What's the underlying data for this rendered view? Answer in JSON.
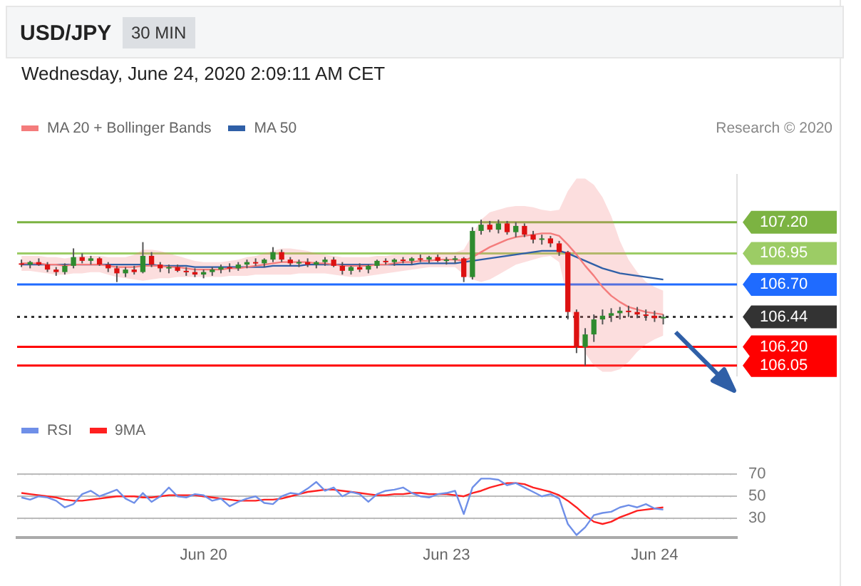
{
  "chart_data": [
    {
      "type": "candlestick",
      "title": "USD/JPY",
      "subtitle": "30 MIN",
      "annotations": [
        "Wednesday, June 24, 2020 2:09:11 AM CET",
        "Research © 2020"
      ],
      "categories": [
        null,
        null,
        null,
        null,
        null,
        null,
        null,
        null,
        null,
        null,
        null,
        null,
        null,
        null,
        null,
        null,
        null,
        null,
        null,
        null,
        null,
        null,
        null,
        null,
        null,
        null,
        null,
        null,
        null,
        null,
        null,
        null,
        null,
        null,
        null,
        null,
        null,
        null,
        null,
        null,
        null,
        null,
        null,
        null,
        null,
        null,
        null,
        null,
        null,
        null,
        null,
        null,
        null,
        null,
        null,
        null,
        null,
        null,
        null,
        null,
        null,
        null,
        null,
        null,
        null,
        null,
        null,
        null,
        null,
        null,
        null,
        null,
        null,
        null,
        null,
        null,
        null,
        null,
        null,
        null,
        null,
        null,
        null
      ],
      "ohlc": [
        [
          106.87,
          106.9,
          106.84,
          106.86
        ],
        [
          106.86,
          106.89,
          106.83,
          106.88
        ],
        [
          106.88,
          106.91,
          106.85,
          106.86
        ],
        [
          106.86,
          106.88,
          106.8,
          106.82
        ],
        [
          106.82,
          106.84,
          106.77,
          106.8
        ],
        [
          106.8,
          106.87,
          106.78,
          106.85
        ],
        [
          106.85,
          106.99,
          106.83,
          106.92
        ],
        [
          106.92,
          106.95,
          106.87,
          106.89
        ],
        [
          106.89,
          106.93,
          106.86,
          106.91
        ],
        [
          106.91,
          106.92,
          106.85,
          106.86
        ],
        [
          106.86,
          106.88,
          106.8,
          106.83
        ],
        [
          106.83,
          106.85,
          106.72,
          106.79
        ],
        [
          106.79,
          106.84,
          106.76,
          106.82
        ],
        [
          106.82,
          106.85,
          106.78,
          106.8
        ],
        [
          106.8,
          107.04,
          106.79,
          106.93
        ],
        [
          106.93,
          106.96,
          106.84,
          106.86
        ],
        [
          106.86,
          106.88,
          106.8,
          106.83
        ],
        [
          106.83,
          106.86,
          106.79,
          106.84
        ],
        [
          106.84,
          106.86,
          106.8,
          106.81
        ],
        [
          106.81,
          106.84,
          106.77,
          106.8
        ],
        [
          106.8,
          106.83,
          106.76,
          106.78
        ],
        [
          106.78,
          106.82,
          106.75,
          106.8
        ],
        [
          106.8,
          106.84,
          106.77,
          106.82
        ],
        [
          106.82,
          106.86,
          106.79,
          106.84
        ],
        [
          106.84,
          106.87,
          106.8,
          106.83
        ],
        [
          106.83,
          106.88,
          106.81,
          106.86
        ],
        [
          106.86,
          106.9,
          106.83,
          106.88
        ],
        [
          106.88,
          106.91,
          106.85,
          106.87
        ],
        [
          106.87,
          106.91,
          106.84,
          106.9
        ],
        [
          106.9,
          107.0,
          106.88,
          106.96
        ],
        [
          106.96,
          106.98,
          106.88,
          106.9
        ],
        [
          106.9,
          106.92,
          106.85,
          106.87
        ],
        [
          106.87,
          106.9,
          106.84,
          106.88
        ],
        [
          106.88,
          106.91,
          106.84,
          106.86
        ],
        [
          106.86,
          106.89,
          106.83,
          106.88
        ],
        [
          106.88,
          106.92,
          106.85,
          106.9
        ],
        [
          106.9,
          106.92,
          106.84,
          106.85
        ],
        [
          106.85,
          106.88,
          106.78,
          106.81
        ],
        [
          106.81,
          106.85,
          106.78,
          106.84
        ],
        [
          106.84,
          106.87,
          106.8,
          106.82
        ],
        [
          106.82,
          106.86,
          106.79,
          106.85
        ],
        [
          106.85,
          106.9,
          106.83,
          106.89
        ],
        [
          106.89,
          106.91,
          106.86,
          106.88
        ],
        [
          106.88,
          106.91,
          106.85,
          106.9
        ],
        [
          106.9,
          106.92,
          106.87,
          106.89
        ],
        [
          106.89,
          106.92,
          106.86,
          106.91
        ],
        [
          106.91,
          106.94,
          106.88,
          106.9
        ],
        [
          106.9,
          106.93,
          106.87,
          106.92
        ],
        [
          106.92,
          106.94,
          106.88,
          106.89
        ],
        [
          106.89,
          106.92,
          106.86,
          106.9
        ],
        [
          106.9,
          106.93,
          106.87,
          106.91
        ],
        [
          106.91,
          106.92,
          106.72,
          106.76
        ],
        [
          106.76,
          107.16,
          106.74,
          107.13
        ],
        [
          107.13,
          107.22,
          107.1,
          107.18
        ],
        [
          107.18,
          107.21,
          107.12,
          107.14
        ],
        [
          107.14,
          107.22,
          107.11,
          107.19
        ],
        [
          107.19,
          107.21,
          107.1,
          107.12
        ],
        [
          107.12,
          107.2,
          107.08,
          107.17
        ],
        [
          107.17,
          107.19,
          107.08,
          107.1
        ],
        [
          107.1,
          107.13,
          107.03,
          107.06
        ],
        [
          107.06,
          107.1,
          107.02,
          107.07
        ],
        [
          107.07,
          107.09,
          107.0,
          107.03
        ],
        [
          107.03,
          107.05,
          106.93,
          106.96
        ],
        [
          106.96,
          106.97,
          106.42,
          106.48
        ],
        [
          106.48,
          106.5,
          106.15,
          106.2
        ],
        [
          106.2,
          106.35,
          106.05,
          106.3
        ],
        [
          106.3,
          106.46,
          106.24,
          106.42
        ],
        [
          106.42,
          106.5,
          106.38,
          106.45
        ],
        [
          106.45,
          106.51,
          106.4,
          106.47
        ],
        [
          106.47,
          106.52,
          106.42,
          106.49
        ],
        [
          106.49,
          106.53,
          106.44,
          106.48
        ],
        [
          106.48,
          106.52,
          106.43,
          106.46
        ],
        [
          106.46,
          106.5,
          106.41,
          106.45
        ],
        [
          106.45,
          106.49,
          106.4,
          106.43
        ],
        [
          106.43,
          106.46,
          106.38,
          106.44
        ],
        null,
        null,
        null,
        null,
        null,
        null,
        null,
        null
      ],
      "series": [
        {
          "name": "MA 20 + Bollinger Bands",
          "type": "line",
          "color": "#f47c7c",
          "values": [
            106.87,
            106.87,
            106.87,
            106.86,
            106.86,
            106.85,
            106.86,
            106.86,
            106.86,
            106.86,
            106.85,
            106.84,
            106.84,
            106.84,
            106.85,
            106.85,
            106.85,
            106.84,
            106.84,
            106.83,
            106.82,
            106.82,
            106.82,
            106.82,
            106.83,
            106.83,
            106.84,
            106.85,
            106.86,
            106.87,
            106.88,
            106.88,
            106.88,
            106.88,
            106.87,
            106.87,
            106.86,
            106.85,
            106.85,
            106.85,
            106.85,
            106.86,
            106.86,
            106.87,
            106.88,
            106.88,
            106.89,
            106.89,
            106.9,
            106.9,
            106.9,
            106.89,
            106.92,
            106.96,
            107.0,
            107.03,
            107.06,
            107.08,
            107.09,
            107.1,
            107.11,
            107.11,
            107.09,
            107.02,
            106.94,
            106.85,
            106.77,
            106.68,
            106.61,
            106.56,
            106.52,
            106.5,
            106.48,
            106.47,
            106.46,
            null,
            null,
            null,
            null,
            null,
            null,
            null,
            null
          ],
          "upper": [
            106.93,
            106.93,
            106.93,
            106.92,
            106.92,
            106.91,
            106.92,
            106.93,
            106.93,
            106.93,
            106.92,
            106.92,
            106.92,
            106.94,
            106.98,
            106.98,
            106.97,
            106.95,
            106.93,
            106.91,
            106.89,
            106.88,
            106.88,
            106.88,
            106.89,
            106.9,
            106.92,
            106.93,
            106.95,
            106.97,
            106.99,
            106.99,
            106.98,
            106.97,
            106.95,
            106.94,
            106.93,
            106.92,
            106.92,
            106.92,
            106.92,
            106.93,
            106.93,
            106.94,
            106.94,
            106.95,
            106.95,
            106.95,
            106.96,
            106.96,
            106.96,
            106.98,
            107.1,
            107.22,
            107.28,
            107.3,
            107.32,
            107.33,
            107.33,
            107.32,
            107.3,
            107.29,
            107.3,
            107.45,
            107.55,
            107.55,
            107.5,
            107.4,
            107.25,
            107.05,
            106.9,
            106.8,
            106.72,
            106.68,
            106.65,
            null,
            null,
            null,
            null,
            null,
            null,
            null,
            null
          ],
          "lower": [
            106.81,
            106.81,
            106.8,
            106.79,
            106.78,
            106.78,
            106.79,
            106.79,
            106.8,
            106.8,
            106.78,
            106.76,
            106.75,
            106.74,
            106.73,
            106.74,
            106.75,
            106.75,
            106.76,
            106.76,
            106.76,
            106.76,
            106.76,
            106.76,
            106.77,
            106.77,
            106.77,
            106.78,
            106.78,
            106.78,
            106.78,
            106.78,
            106.79,
            106.79,
            106.79,
            106.79,
            106.78,
            106.77,
            106.76,
            106.76,
            106.77,
            106.78,
            106.79,
            106.8,
            106.81,
            106.82,
            106.83,
            106.84,
            106.84,
            106.84,
            106.84,
            106.78,
            106.74,
            106.72,
            106.74,
            106.78,
            106.82,
            106.86,
            106.88,
            106.9,
            106.92,
            106.93,
            106.88,
            106.58,
            106.33,
            106.15,
            106.05,
            106.0,
            106.0,
            106.02,
            106.08,
            106.16,
            106.22,
            106.26,
            106.29,
            null,
            null,
            null,
            null,
            null,
            null,
            null,
            null
          ]
        },
        {
          "name": "MA 50",
          "type": "line",
          "color": "#2f5fa7",
          "values": [
            106.86,
            106.86,
            106.86,
            106.86,
            106.86,
            106.86,
            106.86,
            106.86,
            106.86,
            106.86,
            106.86,
            106.86,
            106.86,
            106.86,
            106.86,
            106.86,
            106.85,
            106.85,
            106.85,
            106.85,
            106.84,
            106.84,
            106.84,
            106.84,
            106.84,
            106.84,
            106.84,
            106.84,
            106.84,
            106.85,
            106.85,
            106.85,
            106.85,
            106.86,
            106.86,
            106.86,
            106.86,
            106.86,
            106.86,
            106.86,
            106.86,
            106.86,
            106.86,
            106.86,
            106.86,
            106.86,
            106.87,
            106.87,
            106.87,
            106.87,
            106.87,
            106.88,
            106.89,
            106.9,
            106.91,
            106.92,
            106.93,
            106.94,
            106.95,
            106.96,
            106.97,
            106.97,
            106.97,
            106.95,
            106.92,
            106.89,
            106.86,
            106.83,
            106.81,
            106.79,
            106.78,
            106.77,
            106.76,
            106.75,
            106.74,
            null,
            null,
            null,
            null,
            null,
            null,
            null,
            null
          ]
        }
      ],
      "ylim": [
        105.97,
        107.58
      ],
      "yticks": [
        {
          "value": 106.05,
          "label": "106.05"
        },
        {
          "value": 106.2,
          "label": "106.20"
        },
        {
          "value": 106.44,
          "label": "106.44"
        },
        {
          "value": 106.7,
          "label": "106.70"
        },
        {
          "value": 106.95,
          "label": "106.95"
        },
        {
          "value": 107.2,
          "label": "107.20"
        }
      ],
      "ref_lines": [
        {
          "axis": "y",
          "value": 107.2,
          "color": "#7cb342"
        },
        {
          "axis": "y",
          "value": 106.95,
          "color": "#9ccc65"
        },
        {
          "axis": "y",
          "value": 106.7,
          "color": "#1f6bff"
        },
        {
          "axis": "y",
          "value": 106.44,
          "color": "#333333",
          "line_style": "dotted"
        },
        {
          "axis": "y",
          "value": 106.2,
          "color": "#ff0000"
        },
        {
          "axis": "y",
          "value": 106.05,
          "color": "#ff0000"
        }
      ],
      "legend": "top left",
      "tick_labels": "y",
      "grid": false
    },
    {
      "type": "line",
      "categories": [
        null,
        null,
        null,
        null,
        null,
        null,
        null,
        null,
        null,
        null,
        null,
        null,
        null,
        null,
        null,
        null,
        null,
        null,
        null,
        null,
        null,
        "Jun 20",
        null,
        null,
        null,
        null,
        null,
        null,
        null,
        null,
        null,
        null,
        null,
        null,
        null,
        null,
        null,
        null,
        null,
        null,
        null,
        null,
        null,
        null,
        null,
        null,
        null,
        null,
        null,
        "Jun 23",
        null,
        null,
        null,
        null,
        null,
        null,
        null,
        null,
        null,
        null,
        null,
        null,
        null,
        null,
        null,
        null,
        null,
        null,
        null,
        null,
        null,
        null,
        null,
        "Jun 24",
        null,
        null,
        null,
        null,
        null,
        null,
        null,
        null,
        null
      ],
      "series": [
        {
          "name": "RSI",
          "color": "#6f8fe8",
          "values": [
            49,
            47,
            50,
            49,
            46,
            40,
            43,
            52,
            55,
            50,
            53,
            56,
            48,
            44,
            53,
            45,
            50,
            58,
            50,
            49,
            52,
            51,
            46,
            48,
            41,
            45,
            48,
            50,
            44,
            43,
            50,
            53,
            52,
            57,
            63,
            55,
            58,
            50,
            54,
            52,
            45,
            52,
            55,
            56,
            58,
            53,
            50,
            49,
            52,
            53,
            55,
            34,
            58,
            66,
            66,
            65,
            60,
            62,
            58,
            54,
            50,
            52,
            48,
            25,
            15,
            22,
            33,
            35,
            36,
            40,
            42,
            40,
            43,
            39,
            38,
            null,
            null,
            null,
            null,
            null,
            null,
            null,
            null
          ]
        },
        {
          "name": "9MA",
          "color": "#ff2020",
          "values": [
            53,
            52,
            51,
            50,
            49,
            47,
            46,
            46,
            47,
            48,
            49,
            50,
            50,
            50,
            49,
            49,
            50,
            51,
            51,
            51,
            51,
            50,
            49,
            48,
            47,
            46,
            46,
            46,
            47,
            47,
            48,
            50,
            52,
            54,
            55,
            56,
            56,
            55,
            54,
            53,
            52,
            51,
            51,
            52,
            52,
            53,
            53,
            52,
            52,
            52,
            51,
            50,
            53,
            55,
            58,
            60,
            62,
            62,
            61,
            58,
            56,
            54,
            51,
            46,
            40,
            33,
            27,
            25,
            27,
            31,
            34,
            37,
            38,
            39,
            40,
            null,
            null,
            null,
            null,
            null,
            null,
            null,
            null
          ]
        }
      ],
      "ylim": [
        13,
        70
      ],
      "yticks": [
        30,
        50,
        70
      ],
      "grid": "y",
      "legend": "top left"
    }
  ]
}
